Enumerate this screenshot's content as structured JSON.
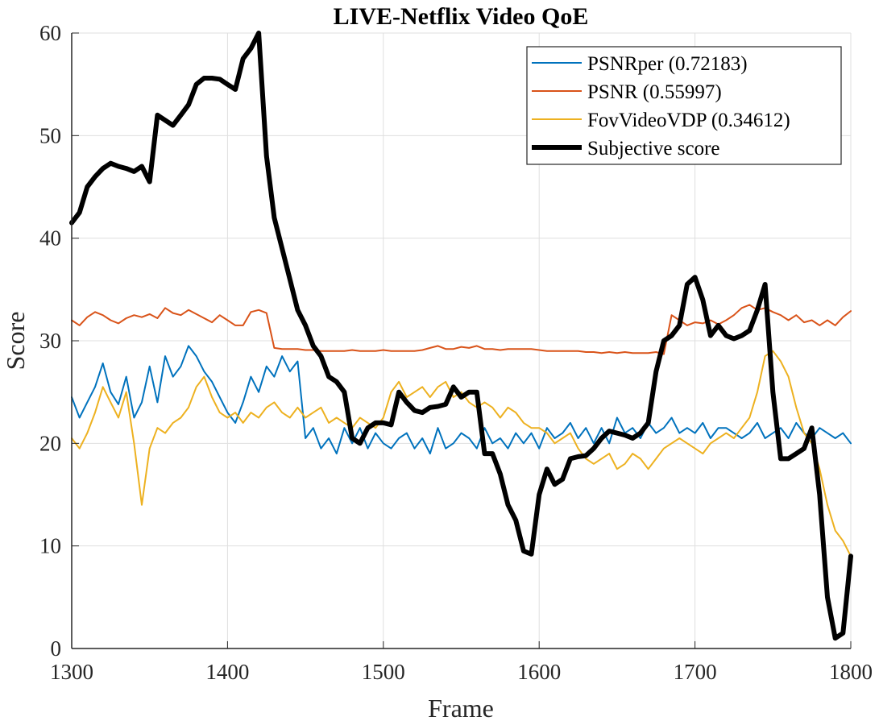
{
  "chart_data": {
    "type": "line",
    "title": "LIVE-Netflix Video QoE",
    "xlabel": "Frame",
    "ylabel": "Score",
    "xlim": [
      1300,
      1800
    ],
    "ylim": [
      0,
      60
    ],
    "xticks": [
      1300,
      1400,
      1500,
      1600,
      1700,
      1800
    ],
    "yticks": [
      0,
      10,
      20,
      30,
      40,
      50,
      60
    ],
    "xtick_labels": [
      "1300",
      "1400",
      "1500",
      "1600",
      "1700",
      "1800"
    ],
    "ytick_labels": [
      "0",
      "10",
      "20",
      "30",
      "40",
      "50",
      "60"
    ],
    "grid": true,
    "legend_position": "top-right",
    "x_step": 5,
    "x_start": 1300,
    "series": [
      {
        "name": "PSNRper (0.72183)",
        "color": "#0072BD",
        "values": [
          24.5,
          22.5,
          24.0,
          25.5,
          27.8,
          25.0,
          23.8,
          26.5,
          22.5,
          24.0,
          27.5,
          24.0,
          28.5,
          26.5,
          27.5,
          29.5,
          28.5,
          27.0,
          26.0,
          24.5,
          23.0,
          22.0,
          24.0,
          26.5,
          25.0,
          27.5,
          26.5,
          28.5,
          27.0,
          28.0,
          20.5,
          21.5,
          19.5,
          20.5,
          19.0,
          21.5,
          20.0,
          21.5,
          19.5,
          21.0,
          20.0,
          19.5,
          20.5,
          21.0,
          19.5,
          20.5,
          19.0,
          21.5,
          19.5,
          20.0,
          21.0,
          20.5,
          19.5,
          21.5,
          20.0,
          20.5,
          19.5,
          21.0,
          20.0,
          21.0,
          19.5,
          21.5,
          20.5,
          21.0,
          22.0,
          20.5,
          21.5,
          20.0,
          21.5,
          20.0,
          22.5,
          21.0,
          21.5,
          20.5,
          22.0,
          21.0,
          21.5,
          22.5,
          21.0,
          21.5,
          21.0,
          22.0,
          20.5,
          21.5,
          21.5,
          21.0,
          20.5,
          21.0,
          22.0,
          20.5,
          21.0,
          21.5,
          20.5,
          22.0,
          21.0,
          20.5,
          21.5,
          21.0,
          20.5,
          21.0,
          20.0
        ]
      },
      {
        "name": "PSNR (0.55997)",
        "color": "#D95319",
        "values": [
          32.0,
          31.5,
          32.3,
          32.8,
          32.5,
          32.0,
          31.7,
          32.2,
          32.5,
          32.3,
          32.6,
          32.2,
          33.2,
          32.7,
          32.5,
          33.0,
          32.6,
          32.2,
          31.8,
          32.5,
          32.0,
          31.5,
          31.5,
          32.8,
          33.0,
          32.7,
          29.3,
          29.2,
          29.2,
          29.2,
          29.1,
          29.1,
          29.0,
          29.0,
          29.0,
          29.0,
          29.1,
          29.0,
          29.0,
          29.0,
          29.1,
          29.0,
          29.0,
          29.0,
          29.0,
          29.1,
          29.3,
          29.5,
          29.2,
          29.2,
          29.4,
          29.3,
          29.5,
          29.2,
          29.2,
          29.1,
          29.2,
          29.2,
          29.2,
          29.2,
          29.1,
          29.0,
          29.0,
          29.0,
          29.0,
          29.0,
          28.9,
          28.9,
          28.8,
          28.9,
          28.8,
          28.9,
          28.8,
          28.8,
          28.8,
          28.9,
          28.7,
          32.5,
          32.0,
          31.5,
          31.8,
          31.7,
          32.0,
          31.6,
          32.0,
          32.5,
          33.2,
          33.5,
          33.0,
          33.2,
          32.8,
          32.5,
          32.0,
          32.5,
          31.8,
          32.0,
          31.5,
          32.0,
          31.5,
          32.3,
          32.9
        ]
      },
      {
        "name": "FovVideoVDP (0.34612)",
        "color": "#EDB120",
        "values": [
          20.5,
          19.5,
          21.0,
          23.0,
          25.5,
          24.0,
          22.5,
          25.0,
          20.0,
          14.0,
          19.5,
          21.5,
          21.0,
          22.0,
          22.5,
          23.5,
          25.5,
          26.5,
          24.5,
          23.0,
          22.5,
          23.0,
          22.0,
          23.0,
          22.5,
          23.5,
          24.0,
          23.0,
          22.5,
          23.5,
          22.5,
          23.0,
          23.5,
          22.0,
          22.5,
          22.0,
          21.5,
          22.5,
          22.0,
          21.5,
          22.5,
          25.0,
          26.0,
          24.5,
          25.0,
          25.5,
          24.5,
          25.5,
          26.0,
          24.5,
          25.0,
          24.0,
          23.5,
          24.0,
          23.5,
          22.5,
          23.5,
          23.0,
          22.0,
          21.5,
          21.5,
          21.0,
          20.0,
          20.5,
          21.0,
          19.5,
          18.5,
          18.0,
          18.5,
          19.0,
          17.5,
          18.0,
          19.0,
          18.5,
          17.5,
          18.5,
          19.5,
          20.0,
          20.5,
          20.0,
          19.5,
          19.0,
          20.0,
          20.5,
          21.0,
          20.5,
          21.5,
          22.5,
          25.0,
          28.5,
          29.0,
          28.0,
          26.5,
          23.5,
          21.0,
          20.0,
          17.5,
          14.0,
          11.5,
          10.5,
          9.0
        ]
      },
      {
        "name": "Subjective score",
        "color": "#000000",
        "values": [
          41.5,
          42.5,
          45.0,
          46.0,
          46.8,
          47.3,
          47.0,
          46.8,
          46.5,
          47.0,
          45.5,
          52.0,
          51.5,
          51.0,
          52.0,
          53.0,
          55.0,
          55.6,
          55.6,
          55.5,
          55.0,
          54.5,
          57.5,
          58.5,
          60.0,
          48.0,
          42.0,
          39.0,
          36.0,
          33.0,
          31.5,
          29.5,
          28.5,
          26.5,
          26.0,
          25.0,
          20.5,
          20.0,
          21.5,
          22.0,
          22.0,
          21.8,
          25.0,
          24.0,
          23.2,
          23.0,
          23.5,
          23.6,
          23.8,
          25.5,
          24.5,
          25.0,
          25.0,
          19.0,
          19.0,
          17.0,
          14.0,
          12.5,
          9.5,
          9.2,
          15.0,
          17.5,
          16.0,
          16.5,
          18.5,
          18.7,
          18.8,
          19.5,
          20.5,
          21.2,
          21.0,
          20.8,
          20.5,
          21.0,
          22.0,
          27.0,
          30.0,
          30.5,
          31.5,
          35.5,
          36.2,
          34.0,
          30.5,
          31.5,
          30.5,
          30.2,
          30.5,
          31.0,
          33.0,
          35.5,
          25.0,
          18.5,
          18.5,
          19.0,
          19.5,
          21.5,
          15.0,
          5.0,
          1.0,
          1.5,
          9.0
        ]
      }
    ]
  }
}
